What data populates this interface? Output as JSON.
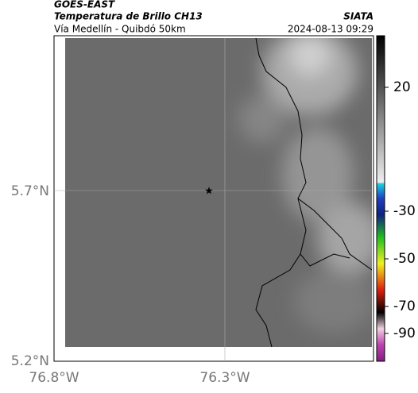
{
  "header": {
    "satellite": "GOES-EAST",
    "product": "Temperatura de Brillo CH13",
    "route": "Vía Medellín - Quibdó 50km",
    "source": "SIATA",
    "timestamp": "2024-08-13 09:29"
  },
  "map": {
    "lat_ticks": [
      {
        "value": 5.7,
        "label": "5.7°N"
      },
      {
        "value": 5.2,
        "label": "5.2°N"
      }
    ],
    "lon_ticks": [
      {
        "value": -76.8,
        "label": "76.8°W"
      },
      {
        "value": -76.3,
        "label": "76.3°W"
      }
    ],
    "colorbar_ticks": [
      20,
      -30,
      -50,
      -70,
      -90
    ]
  }
}
